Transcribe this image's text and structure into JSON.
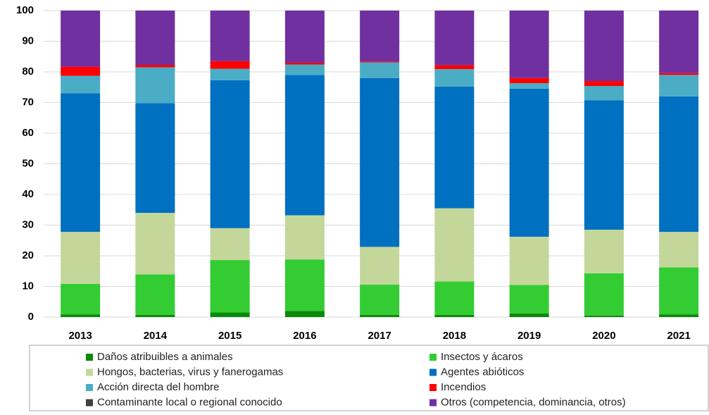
{
  "chart_data": {
    "type": "stacked_bar",
    "categories": [
      "2013",
      "2014",
      "2015",
      "2016",
      "2017",
      "2018",
      "2019",
      "2020",
      "2021"
    ],
    "series": [
      {
        "name": "Daños atribuibles a animales",
        "color": "#0a8a0a",
        "values": [
          0.9,
          0.7,
          1.5,
          2.0,
          0.7,
          0.7,
          1.2,
          0.5,
          0.9
        ]
      },
      {
        "name": "Insectos y ácaros",
        "color": "#33cc33",
        "values": [
          9.9,
          13.2,
          17.1,
          16.8,
          9.9,
          10.9,
          9.3,
          13.8,
          15.3
        ]
      },
      {
        "name": "Hongos, bacterias, virus y fanerogamas",
        "color": "#c4d79b",
        "values": [
          17.0,
          20.1,
          10.4,
          14.4,
          12.3,
          23.9,
          15.7,
          14.2,
          11.6
        ]
      },
      {
        "name": "Agentes abióticos",
        "color": "#0070c0",
        "values": [
          45.2,
          35.8,
          48.3,
          45.8,
          55.1,
          39.7,
          48.3,
          42.2,
          44.2
        ]
      },
      {
        "name": "Acción directa del hombre",
        "color": "#4bacc6",
        "values": [
          5.7,
          11.7,
          3.7,
          3.4,
          5.1,
          5.7,
          1.8,
          4.7,
          7.0
        ]
      },
      {
        "name": "Incendios",
        "color": "#ff0000",
        "values": [
          3.0,
          0.8,
          2.5,
          0.6,
          0.3,
          1.3,
          1.7,
          1.6,
          0.6
        ]
      },
      {
        "name": "Contaminante local o regional conocido",
        "color": "#404040",
        "values": [
          0,
          0,
          0,
          0,
          0,
          0,
          0,
          0,
          0
        ]
      },
      {
        "name": "Otros (competencia, dominancia, otros)",
        "color": "#7030a0",
        "values": [
          18.3,
          17.7,
          16.5,
          17.0,
          16.6,
          17.8,
          22.0,
          23.0,
          20.4
        ]
      }
    ],
    "ylim": [
      0,
      100
    ],
    "yticks": [
      0,
      10,
      20,
      30,
      40,
      50,
      60,
      70,
      80,
      90,
      100
    ],
    "grid": true
  }
}
